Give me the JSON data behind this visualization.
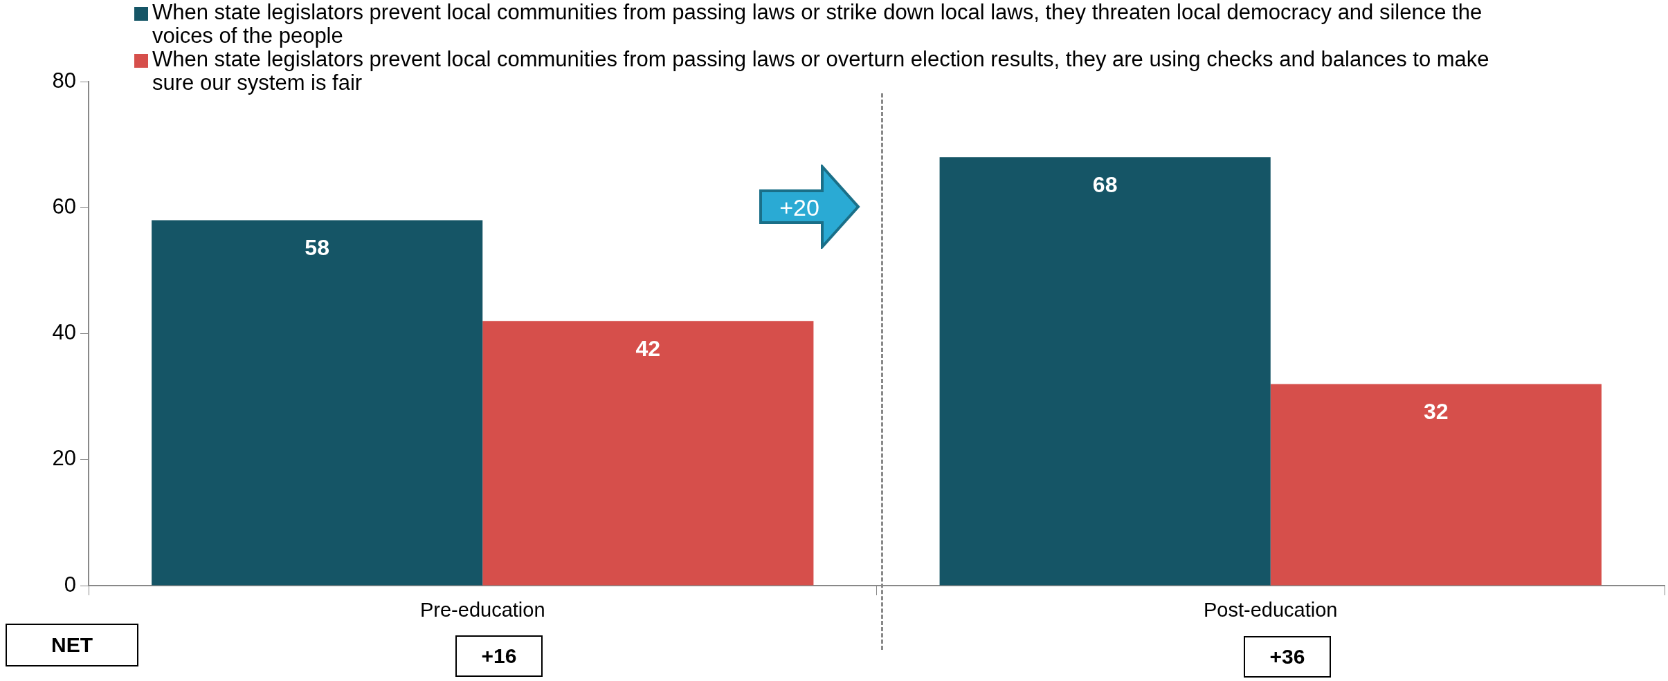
{
  "chart_data": {
    "type": "bar",
    "categories": [
      "Pre-education",
      "Post-education"
    ],
    "series": [
      {
        "name": "When state legislators prevent local communities from passing laws or strike down local laws, they threaten local democracy and silence the voices of the people",
        "color": "#155566",
        "values": [
          58,
          68
        ]
      },
      {
        "name": "When state legislators prevent local communities from passing laws or overturn election results, they are using checks and balances to make sure our system is fair",
        "color": "#d64f4b",
        "values": [
          42,
          32
        ]
      }
    ],
    "ylim": [
      0,
      80
    ],
    "yticks": [
      0,
      20,
      40,
      60,
      80
    ],
    "grid": false,
    "legend": "top",
    "data_labels": true,
    "annotations": [
      "+20",
      "NET",
      "+16",
      "+36"
    ]
  }
}
